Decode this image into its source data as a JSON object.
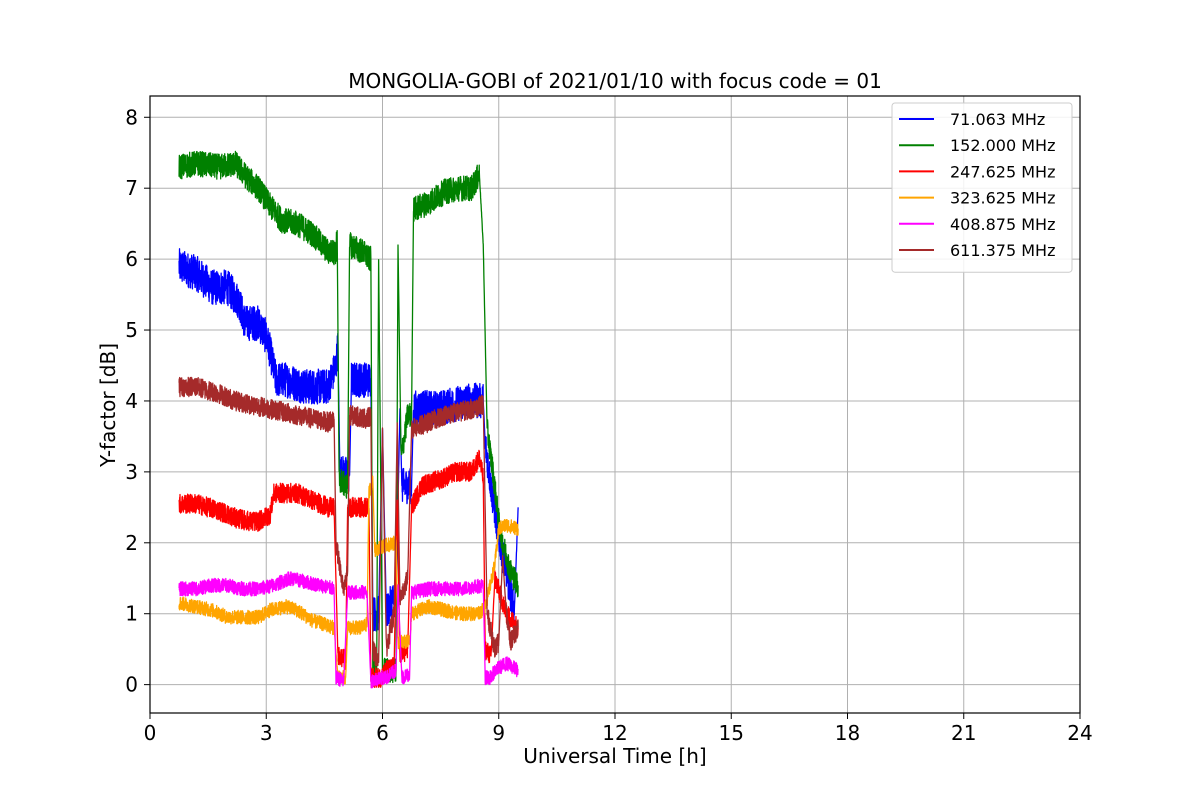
{
  "chart_data": {
    "type": "line",
    "title": "MONGOLIA-GOBI of 2021/01/10 with focus code = 01",
    "xlabel": "Universal Time [h]",
    "ylabel": "Y-factor [dB]",
    "xlim": [
      0,
      24
    ],
    "ylim": [
      -0.4,
      8.3
    ],
    "xticks": [
      0,
      3,
      6,
      9,
      12,
      15,
      18,
      21,
      24
    ],
    "yticks": [
      0,
      1,
      2,
      3,
      4,
      5,
      6,
      7,
      8
    ],
    "grid": true,
    "legend_position": "top-right",
    "series": [
      {
        "name": "  71.063 MHz",
        "color": "#0000ff",
        "noise": 0.25,
        "points": [
          [
            0.75,
            5.9
          ],
          [
            1.2,
            5.8
          ],
          [
            1.6,
            5.6
          ],
          [
            2.0,
            5.6
          ],
          [
            2.3,
            5.4
          ],
          [
            2.45,
            5.1
          ],
          [
            2.6,
            5.1
          ],
          [
            2.8,
            5.1
          ],
          [
            3.0,
            4.9
          ],
          [
            3.1,
            4.7
          ],
          [
            3.25,
            4.3
          ],
          [
            3.5,
            4.3
          ],
          [
            4.0,
            4.2
          ],
          [
            4.4,
            4.2
          ],
          [
            4.6,
            4.2
          ],
          [
            4.8,
            4.5
          ],
          [
            4.85,
            4.8
          ],
          [
            4.9,
            3.0
          ],
          [
            5.15,
            2.95
          ],
          [
            5.2,
            4.3
          ],
          [
            5.6,
            4.3
          ],
          [
            5.7,
            4.3
          ],
          [
            5.75,
            1.0
          ],
          [
            5.9,
            1.0
          ],
          [
            6.0,
            3.6
          ],
          [
            6.1,
            1.0
          ],
          [
            6.25,
            1.2
          ],
          [
            6.35,
            1.2
          ],
          [
            6.45,
            3.9
          ],
          [
            6.5,
            2.8
          ],
          [
            6.75,
            2.8
          ],
          [
            6.8,
            3.9
          ],
          [
            7.5,
            3.9
          ],
          [
            8.2,
            4.0
          ],
          [
            8.6,
            4.0
          ],
          [
            8.65,
            3.4
          ],
          [
            8.8,
            2.8
          ],
          [
            9.0,
            2.1
          ],
          [
            9.2,
            1.6
          ],
          [
            9.4,
            1.0
          ],
          [
            9.5,
            2.5
          ]
        ]
      },
      {
        "name": "152.000 MHz",
        "color": "#008000",
        "noise": 0.18,
        "points": [
          [
            0.75,
            7.3
          ],
          [
            1.2,
            7.35
          ],
          [
            1.8,
            7.3
          ],
          [
            2.2,
            7.35
          ],
          [
            2.5,
            7.15
          ],
          [
            2.8,
            7.0
          ],
          [
            3.1,
            6.75
          ],
          [
            3.4,
            6.55
          ],
          [
            3.8,
            6.5
          ],
          [
            4.2,
            6.35
          ],
          [
            4.6,
            6.1
          ],
          [
            4.8,
            6.1
          ],
          [
            4.83,
            6.4
          ],
          [
            4.88,
            2.9
          ],
          [
            5.05,
            2.8
          ],
          [
            5.1,
            2.8
          ],
          [
            5.15,
            6.2
          ],
          [
            5.5,
            6.1
          ],
          [
            5.65,
            6.0
          ],
          [
            5.7,
            6.0
          ],
          [
            5.75,
            0.2
          ],
          [
            5.85,
            0.2
          ],
          [
            5.9,
            6.0
          ],
          [
            6.0,
            0.2
          ],
          [
            6.35,
            0.2
          ],
          [
            6.4,
            6.2
          ],
          [
            6.48,
            3.2
          ],
          [
            6.65,
            3.8
          ],
          [
            6.75,
            3.8
          ],
          [
            6.8,
            6.7
          ],
          [
            7.2,
            6.8
          ],
          [
            7.6,
            6.95
          ],
          [
            8.0,
            7.0
          ],
          [
            8.3,
            7.0
          ],
          [
            8.5,
            7.2
          ],
          [
            8.6,
            6.2
          ],
          [
            8.7,
            3.6
          ],
          [
            8.85,
            3.0
          ],
          [
            9.0,
            2.3
          ],
          [
            9.1,
            2.0
          ],
          [
            9.3,
            1.6
          ],
          [
            9.5,
            1.4
          ]
        ]
      },
      {
        "name": "247.625 MHz",
        "color": "#ff0000",
        "noise": 0.14,
        "points": [
          [
            0.75,
            2.55
          ],
          [
            1.2,
            2.55
          ],
          [
            1.8,
            2.45
          ],
          [
            2.2,
            2.35
          ],
          [
            2.6,
            2.3
          ],
          [
            2.8,
            2.3
          ],
          [
            3.1,
            2.4
          ],
          [
            3.2,
            2.7
          ],
          [
            3.6,
            2.7
          ],
          [
            3.8,
            2.7
          ],
          [
            4.2,
            2.6
          ],
          [
            4.6,
            2.5
          ],
          [
            4.75,
            2.5
          ],
          [
            4.85,
            0.4
          ],
          [
            5.05,
            0.35
          ],
          [
            5.1,
            2.5
          ],
          [
            5.5,
            2.5
          ],
          [
            5.65,
            2.5
          ],
          [
            5.7,
            0.1
          ],
          [
            5.95,
            0.1
          ],
          [
            6.1,
            0.2
          ],
          [
            6.3,
            0.25
          ],
          [
            6.38,
            2.6
          ],
          [
            6.45,
            0.4
          ],
          [
            6.65,
            0.5
          ],
          [
            6.75,
            2.5
          ],
          [
            7.0,
            2.8
          ],
          [
            7.5,
            2.9
          ],
          [
            7.9,
            3.0
          ],
          [
            8.3,
            3.0
          ],
          [
            8.5,
            3.2
          ],
          [
            8.6,
            2.9
          ],
          [
            8.65,
            0.5
          ],
          [
            8.8,
            0.4
          ],
          [
            8.9,
            1.5
          ],
          [
            9.2,
            1.0
          ],
          [
            9.5,
            0.8
          ]
        ]
      },
      {
        "name": "323.625 MHz",
        "color": "#ffa500",
        "noise": 0.1,
        "points": [
          [
            0.75,
            1.15
          ],
          [
            1.2,
            1.1
          ],
          [
            1.6,
            1.05
          ],
          [
            2.0,
            0.95
          ],
          [
            2.4,
            0.95
          ],
          [
            2.8,
            0.95
          ],
          [
            3.1,
            1.05
          ],
          [
            3.5,
            1.1
          ],
          [
            3.8,
            1.05
          ],
          [
            4.2,
            0.9
          ],
          [
            4.5,
            0.85
          ],
          [
            4.75,
            0.8
          ],
          [
            4.85,
            0.1
          ],
          [
            5.05,
            0.1
          ],
          [
            5.1,
            0.8
          ],
          [
            5.4,
            0.8
          ],
          [
            5.6,
            0.85
          ],
          [
            5.65,
            2.7
          ],
          [
            5.75,
            2.9
          ],
          [
            5.8,
            1.9
          ],
          [
            6.0,
            1.95
          ],
          [
            6.35,
            2.0
          ],
          [
            6.4,
            0.6
          ],
          [
            6.7,
            0.6
          ],
          [
            6.75,
            1.0
          ],
          [
            7.2,
            1.1
          ],
          [
            7.6,
            1.05
          ],
          [
            8.0,
            1.0
          ],
          [
            8.4,
            1.0
          ],
          [
            8.6,
            1.05
          ],
          [
            8.7,
            1.2
          ],
          [
            8.9,
            1.7
          ],
          [
            9.0,
            2.2
          ],
          [
            9.2,
            2.25
          ],
          [
            9.5,
            2.2
          ]
        ]
      },
      {
        "name": "408.875 MHz",
        "color": "#ff00ff",
        "noise": 0.1,
        "points": [
          [
            0.75,
            1.35
          ],
          [
            1.2,
            1.35
          ],
          [
            1.6,
            1.4
          ],
          [
            2.0,
            1.4
          ],
          [
            2.4,
            1.35
          ],
          [
            2.8,
            1.35
          ],
          [
            3.2,
            1.4
          ],
          [
            3.6,
            1.5
          ],
          [
            4.0,
            1.45
          ],
          [
            4.4,
            1.4
          ],
          [
            4.75,
            1.35
          ],
          [
            4.8,
            0.1
          ],
          [
            5.0,
            0.05
          ],
          [
            5.1,
            1.3
          ],
          [
            5.6,
            1.3
          ],
          [
            5.7,
            0.05
          ],
          [
            5.95,
            0.1
          ],
          [
            6.1,
            0.1
          ],
          [
            6.35,
            0.2
          ],
          [
            6.4,
            1.4
          ],
          [
            6.5,
            0.1
          ],
          [
            6.7,
            0.15
          ],
          [
            6.75,
            1.3
          ],
          [
            7.2,
            1.35
          ],
          [
            7.6,
            1.35
          ],
          [
            8.0,
            1.35
          ],
          [
            8.6,
            1.4
          ],
          [
            8.65,
            0.1
          ],
          [
            8.8,
            0.1
          ],
          [
            8.9,
            0.2
          ],
          [
            9.2,
            0.3
          ],
          [
            9.5,
            0.2
          ]
        ]
      },
      {
        "name": "611.375 MHz",
        "color": "#a52a2a",
        "noise": 0.14,
        "points": [
          [
            0.75,
            4.2
          ],
          [
            1.2,
            4.2
          ],
          [
            1.8,
            4.1
          ],
          [
            2.2,
            4.0
          ],
          [
            2.6,
            3.95
          ],
          [
            3.0,
            3.9
          ],
          [
            3.4,
            3.85
          ],
          [
            3.8,
            3.8
          ],
          [
            4.2,
            3.75
          ],
          [
            4.6,
            3.7
          ],
          [
            4.75,
            3.75
          ],
          [
            4.8,
            2.0
          ],
          [
            5.0,
            1.3
          ],
          [
            5.1,
            1.6
          ],
          [
            5.15,
            3.8
          ],
          [
            5.6,
            3.75
          ],
          [
            5.7,
            3.8
          ],
          [
            5.75,
            0.5
          ],
          [
            5.9,
            0.3
          ],
          [
            6.0,
            3.6
          ],
          [
            6.1,
            0.5
          ],
          [
            6.3,
            1.0
          ],
          [
            6.38,
            3.7
          ],
          [
            6.45,
            1.2
          ],
          [
            6.65,
            1.5
          ],
          [
            6.75,
            3.6
          ],
          [
            7.2,
            3.7
          ],
          [
            7.6,
            3.8
          ],
          [
            8.0,
            3.85
          ],
          [
            8.4,
            3.9
          ],
          [
            8.6,
            3.95
          ],
          [
            8.7,
            1.0
          ],
          [
            8.9,
            0.5
          ],
          [
            9.0,
            0.6
          ],
          [
            9.1,
            1.8
          ],
          [
            9.2,
            1.0
          ],
          [
            9.3,
            0.6
          ],
          [
            9.5,
            0.8
          ]
        ]
      }
    ]
  }
}
